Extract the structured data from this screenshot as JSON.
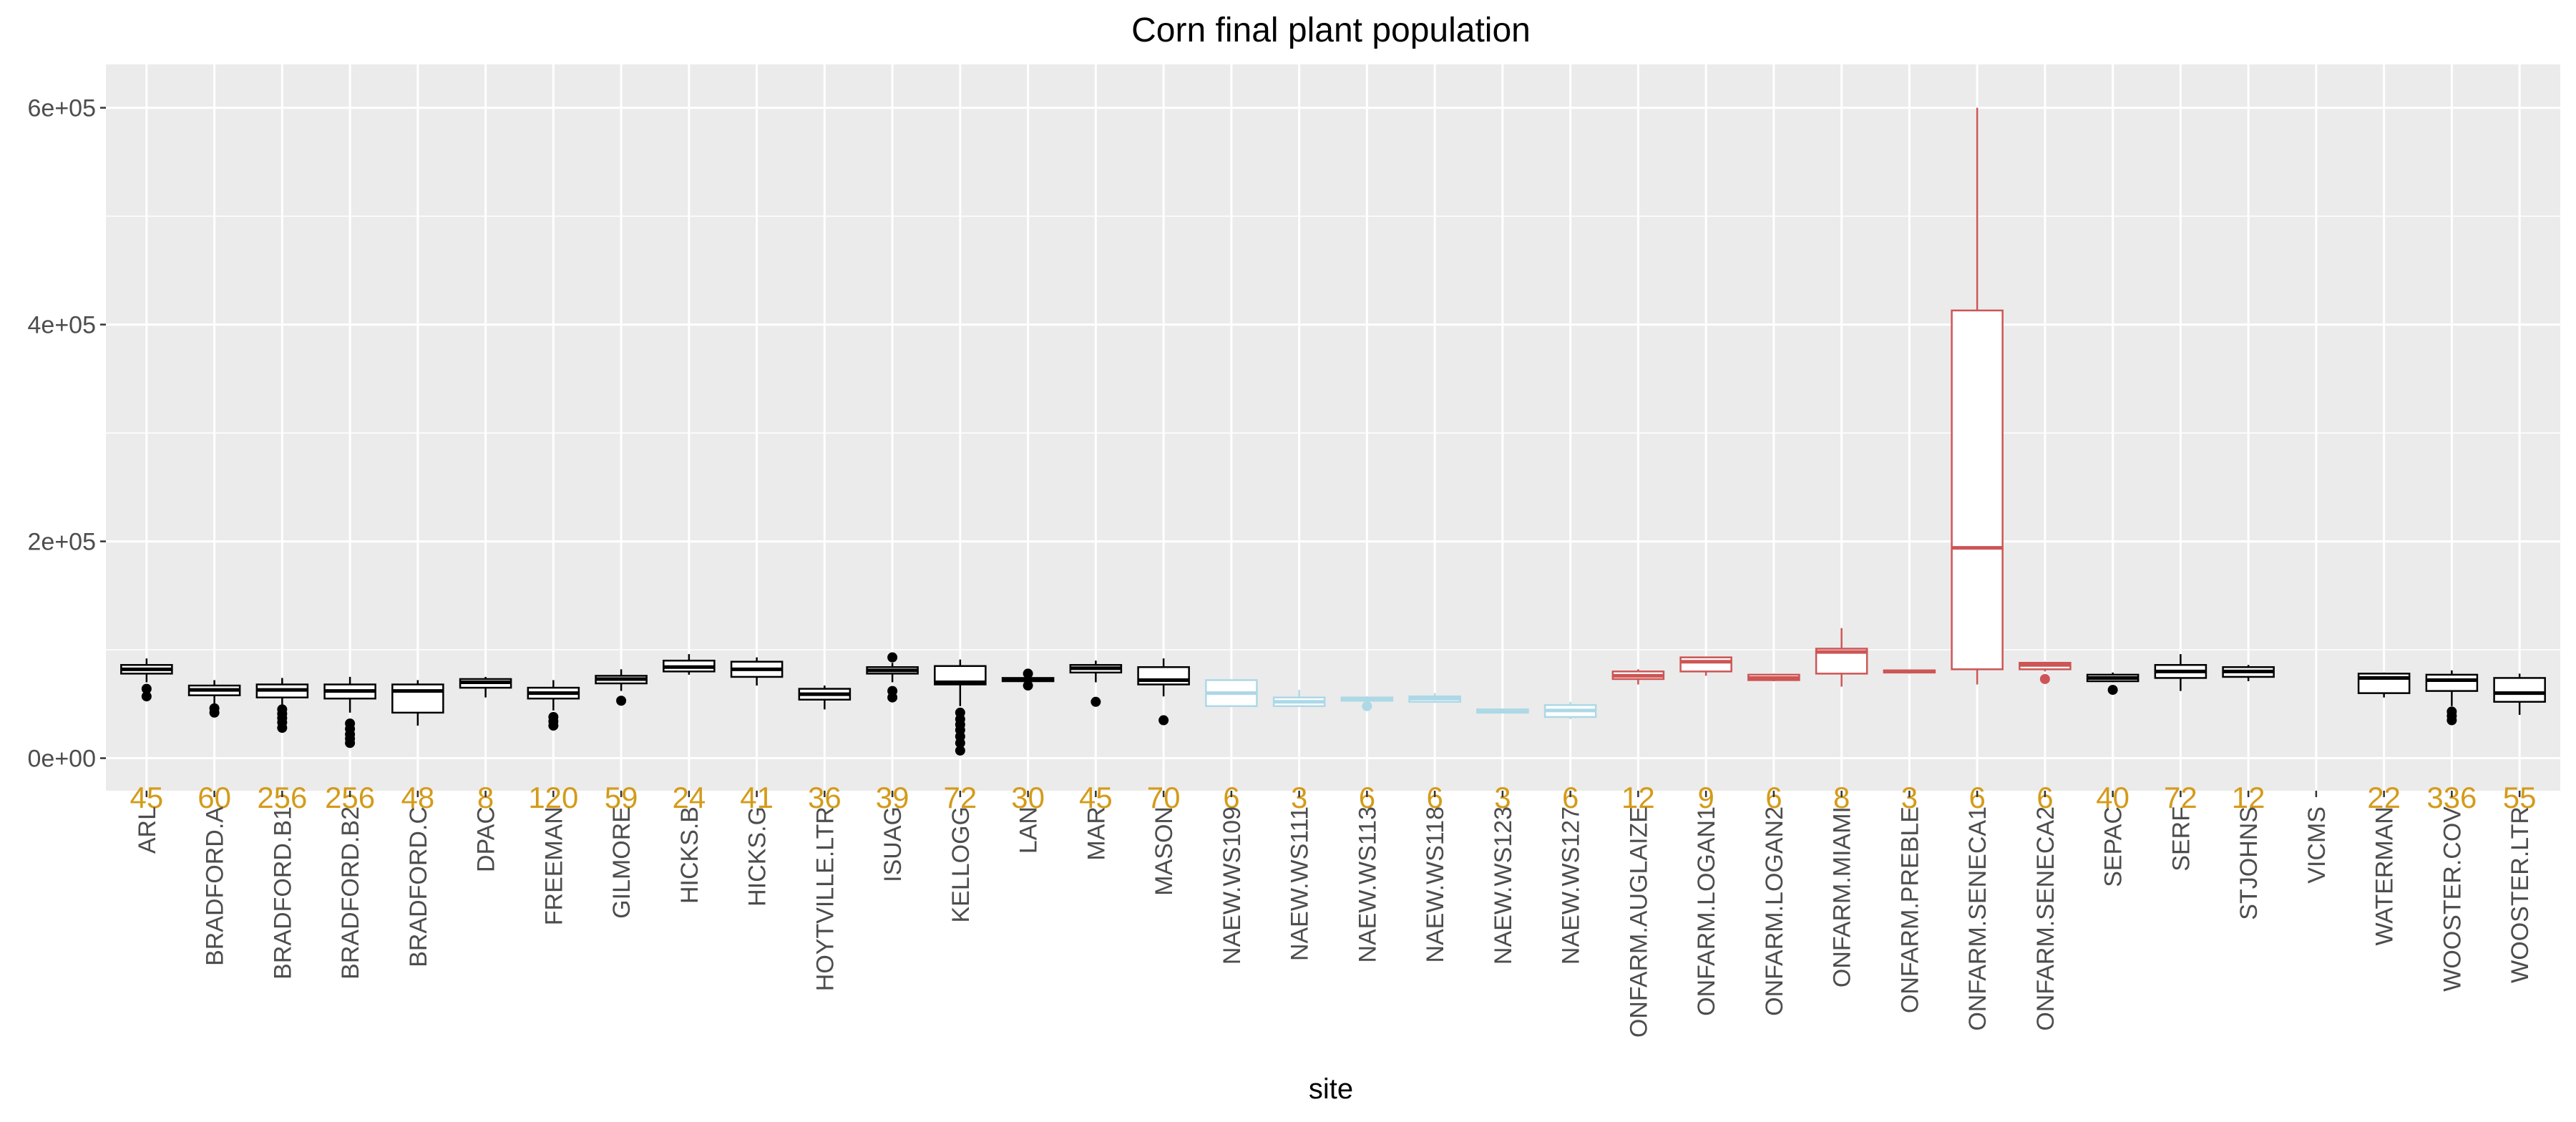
{
  "chart_data": {
    "type": "boxplot",
    "title": "Corn final plant population",
    "xlabel": "site",
    "ylabel": "",
    "ylim": [
      -30000,
      640000
    ],
    "yticks": [
      0,
      200000,
      400000,
      600000
    ],
    "ytick_labels": [
      "0e+00",
      "2e+05",
      "4e+05",
      "6e+05"
    ],
    "grid": true,
    "panel_background": "#ebebeb",
    "count_color": "#d49b1a",
    "count_label_y": -36000,
    "colors": {
      "black": "#000000",
      "lightblue": "#add8e6",
      "red": "#cd5555"
    },
    "categories": [
      {
        "site": "ARL",
        "n": "45",
        "color": "black",
        "low": 70000,
        "q1": 78000,
        "median": 82000,
        "q3": 86000,
        "high": 92000,
        "outliers": [
          57000,
          64000
        ]
      },
      {
        "site": "BRADFORD.A",
        "n": "60",
        "color": "black",
        "low": 50000,
        "q1": 58000,
        "median": 63000,
        "q3": 67000,
        "high": 72000,
        "outliers": [
          42000,
          46000
        ]
      },
      {
        "site": "BRADFORD.B1",
        "n": "256",
        "color": "black",
        "low": 48000,
        "q1": 56000,
        "median": 63000,
        "q3": 68000,
        "high": 74000,
        "outliers": [
          28000,
          33000,
          37000,
          41000,
          45000
        ]
      },
      {
        "site": "BRADFORD.B2",
        "n": "256",
        "color": "black",
        "low": 42000,
        "q1": 55000,
        "median": 62000,
        "q3": 68000,
        "high": 75000,
        "outliers": [
          14000,
          18000,
          22000,
          27000,
          32000
        ]
      },
      {
        "site": "BRADFORD.C",
        "n": "48",
        "color": "black",
        "low": 30000,
        "q1": 42000,
        "median": 62000,
        "q3": 68000,
        "high": 72000,
        "outliers": []
      },
      {
        "site": "DPAC",
        "n": "8",
        "color": "black",
        "low": 56000,
        "q1": 65000,
        "median": 70000,
        "q3": 73000,
        "high": 75000,
        "outliers": []
      },
      {
        "site": "FREEMAN",
        "n": "120",
        "color": "black",
        "low": 44000,
        "q1": 55000,
        "median": 60000,
        "q3": 65000,
        "high": 72000,
        "outliers": [
          30000,
          34000,
          38000
        ]
      },
      {
        "site": "GILMORE",
        "n": "59",
        "color": "black",
        "low": 62000,
        "q1": 69000,
        "median": 73000,
        "q3": 76000,
        "high": 82000,
        "outliers": [
          53000
        ]
      },
      {
        "site": "HICKS.B",
        "n": "24",
        "color": "black",
        "low": 77000,
        "q1": 80000,
        "median": 84000,
        "q3": 90000,
        "high": 96000,
        "outliers": []
      },
      {
        "site": "HICKS.G",
        "n": "41",
        "color": "black",
        "low": 67000,
        "q1": 75000,
        "median": 82000,
        "q3": 89000,
        "high": 93000,
        "outliers": []
      },
      {
        "site": "HOYTVILLE.LTR",
        "n": "36",
        "color": "black",
        "low": 45000,
        "q1": 54000,
        "median": 59000,
        "q3": 64000,
        "high": 67000,
        "outliers": []
      },
      {
        "site": "ISUAG",
        "n": "39",
        "color": "black",
        "low": 70000,
        "q1": 78000,
        "median": 81000,
        "q3": 84000,
        "high": 88000,
        "outliers": [
          56000,
          62000,
          93000
        ]
      },
      {
        "site": "KELLOGG",
        "n": "72",
        "color": "black",
        "low": 48000,
        "q1": 68000,
        "median": 70000,
        "q3": 85000,
        "high": 91000,
        "outliers": [
          7000,
          14000,
          20000,
          26000,
          31000,
          36000,
          42000
        ]
      },
      {
        "site": "LAN",
        "n": "30",
        "color": "black",
        "low": 70000,
        "q1": 71000,
        "median": 73000,
        "q3": 74000,
        "high": 76000,
        "outliers": [
          67000,
          78000
        ]
      },
      {
        "site": "MAR",
        "n": "45",
        "color": "black",
        "low": 70000,
        "q1": 79000,
        "median": 83000,
        "q3": 86000,
        "high": 90000,
        "outliers": [
          52000
        ]
      },
      {
        "site": "MASON",
        "n": "70",
        "color": "black",
        "low": 57000,
        "q1": 68000,
        "median": 72000,
        "q3": 84000,
        "high": 92000,
        "outliers": [
          35000
        ]
      },
      {
        "site": "NAEW.WS109",
        "n": "6",
        "color": "lightblue",
        "low": 48000,
        "q1": 48000,
        "median": 60000,
        "q3": 72000,
        "high": 72000,
        "outliers": []
      },
      {
        "site": "NAEW.WS111",
        "n": "3",
        "color": "lightblue",
        "low": 48000,
        "q1": 48000,
        "median": 52000,
        "q3": 56000,
        "high": 63000,
        "outliers": []
      },
      {
        "site": "NAEW.WS113",
        "n": "6",
        "color": "lightblue",
        "low": 52000,
        "q1": 53000,
        "median": 54000,
        "q3": 56000,
        "high": 57000,
        "outliers": [
          48000
        ]
      },
      {
        "site": "NAEW.WS118",
        "n": "6",
        "color": "lightblue",
        "low": 51000,
        "q1": 52000,
        "median": 55000,
        "q3": 57000,
        "high": 60000,
        "outliers": []
      },
      {
        "site": "NAEW.WS123",
        "n": "3",
        "color": "lightblue",
        "low": 42000,
        "q1": 42000,
        "median": 43000,
        "q3": 45000,
        "high": 45000,
        "outliers": []
      },
      {
        "site": "NAEW.WS127",
        "n": "6",
        "color": "lightblue",
        "low": 36000,
        "q1": 38000,
        "median": 44000,
        "q3": 49000,
        "high": 52000,
        "outliers": []
      },
      {
        "site": "ONFARM.AUGLAIZE",
        "n": "12",
        "color": "red",
        "low": 68000,
        "q1": 73000,
        "median": 76000,
        "q3": 80000,
        "high": 82000,
        "outliers": []
      },
      {
        "site": "ONFARM.LOGAN1",
        "n": "9",
        "color": "red",
        "low": 76000,
        "q1": 80000,
        "median": 89000,
        "q3": 93000,
        "high": 93000,
        "outliers": []
      },
      {
        "site": "ONFARM.LOGAN2",
        "n": "6",
        "color": "red",
        "low": 71000,
        "q1": 72000,
        "median": 74000,
        "q3": 77000,
        "high": 78000,
        "outliers": []
      },
      {
        "site": "ONFARM.MIAMI",
        "n": "8",
        "color": "red",
        "low": 66000,
        "q1": 78000,
        "median": 98000,
        "q3": 101000,
        "high": 120000,
        "outliers": []
      },
      {
        "site": "ONFARM.PREBLE",
        "n": "3",
        "color": "red",
        "low": 78000,
        "q1": 79000,
        "median": 80000,
        "q3": 81000,
        "high": 81000,
        "outliers": []
      },
      {
        "site": "ONFARM.SENECA1",
        "n": "6",
        "color": "red",
        "low": 68000,
        "q1": 82000,
        "median": 194000,
        "q3": 413000,
        "high": 600000,
        "outliers": []
      },
      {
        "site": "ONFARM.SENECA2",
        "n": "6",
        "color": "red",
        "low": 80000,
        "q1": 82000,
        "median": 86000,
        "q3": 88000,
        "high": 89000,
        "outliers": [
          73000
        ]
      },
      {
        "site": "SEPAC",
        "n": "40",
        "color": "black",
        "low": 70000,
        "q1": 71000,
        "median": 74000,
        "q3": 77000,
        "high": 79000,
        "outliers": [
          63000
        ]
      },
      {
        "site": "SERF",
        "n": "72",
        "color": "black",
        "low": 62000,
        "q1": 74000,
        "median": 80000,
        "q3": 86000,
        "high": 96000,
        "outliers": []
      },
      {
        "site": "STJOHNS",
        "n": "12",
        "color": "black",
        "low": 71000,
        "q1": 75000,
        "median": 80000,
        "q3": 84000,
        "high": 86000,
        "outliers": []
      },
      {
        "site": "VICMS",
        "n": "",
        "color": "black",
        "empty": true
      },
      {
        "site": "WATERMAN",
        "n": "22",
        "color": "black",
        "low": 56000,
        "q1": 60000,
        "median": 74000,
        "q3": 78000,
        "high": 79000,
        "outliers": []
      },
      {
        "site": "WOOSTER.COV",
        "n": "336",
        "color": "black",
        "low": 48000,
        "q1": 62000,
        "median": 72000,
        "q3": 77000,
        "high": 81000,
        "outliers": [
          35000,
          39000,
          43000
        ]
      },
      {
        "site": "WOOSTER.LTR",
        "n": "55",
        "color": "black",
        "low": 40000,
        "q1": 52000,
        "median": 60000,
        "q3": 74000,
        "high": 78000,
        "outliers": []
      }
    ]
  }
}
